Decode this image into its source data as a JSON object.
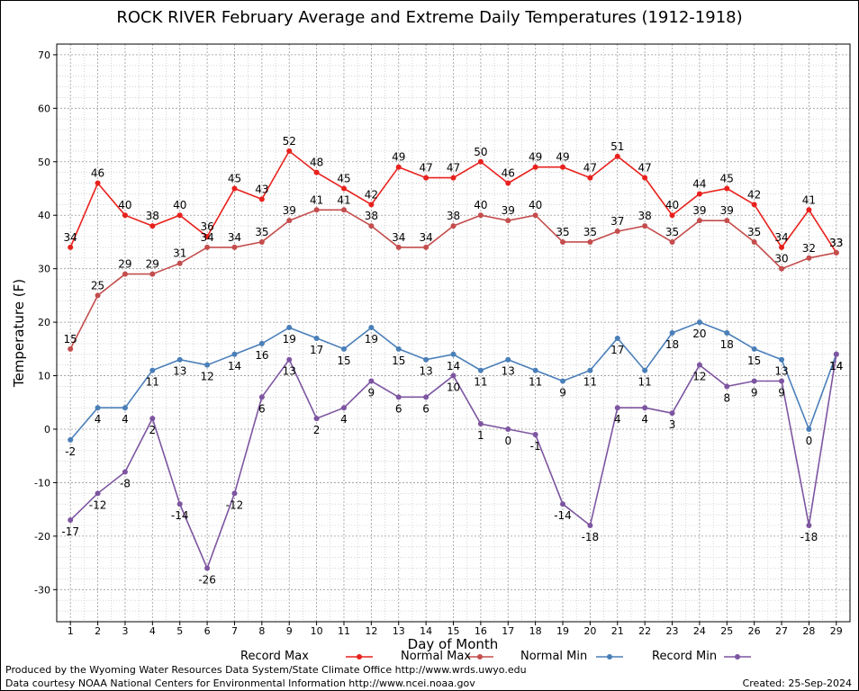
{
  "title": "ROCK RIVER February Average and Extreme Daily Temperatures (1912-1918)",
  "footer": {
    "line1": "Produced by the Wyoming Water Resources Data System/State Climate Office http://www.wrds.uwyo.edu",
    "line2": "Data courtesy NOAA National Centers for Environmental Information http://www.ncei.noaa.gov",
    "created": "Created:  25-Sep-2024"
  },
  "chart_data": {
    "type": "line",
    "xlabel": "Day of Month",
    "ylabel": "Temperature (F)",
    "xlim": [
      0.5,
      29.5
    ],
    "ylim": [
      -36,
      72
    ],
    "yticks": [
      -30,
      -20,
      -10,
      0,
      10,
      20,
      30,
      40,
      50,
      60,
      70
    ],
    "x": [
      1,
      2,
      3,
      4,
      5,
      6,
      7,
      8,
      9,
      10,
      11,
      12,
      13,
      14,
      15,
      16,
      17,
      18,
      19,
      20,
      21,
      22,
      23,
      24,
      25,
      26,
      27,
      28,
      29
    ],
    "grid": true,
    "legend_position": "bottom",
    "series": [
      {
        "name": "Record Max",
        "color": "#e8211d",
        "label_pos": "above",
        "values": [
          34,
          46,
          40,
          38,
          40,
          36,
          45,
          43,
          52,
          48,
          45,
          42,
          49,
          47,
          47,
          50,
          46,
          49,
          49,
          47,
          51,
          47,
          40,
          44,
          45,
          42,
          34,
          41,
          33
        ]
      },
      {
        "name": "Normal Max",
        "color": "#c44d4d",
        "label_pos": "above",
        "values": [
          15,
          25,
          29,
          29,
          31,
          34,
          34,
          35,
          39,
          41,
          41,
          38,
          34,
          34,
          38,
          40,
          39,
          40,
          35,
          35,
          37,
          38,
          35,
          39,
          39,
          35,
          30,
          32,
          33
        ]
      },
      {
        "name": "Normal Min",
        "color": "#4a7fb8",
        "label_pos": "below",
        "values": [
          -2,
          4,
          4,
          11,
          13,
          12,
          14,
          16,
          19,
          17,
          15,
          19,
          15,
          13,
          14,
          11,
          13,
          11,
          9,
          11,
          17,
          11,
          18,
          20,
          18,
          15,
          13,
          0,
          14
        ]
      },
      {
        "name": "Record Min",
        "color": "#7d55a0",
        "label_pos": "below",
        "values": [
          -17,
          -12,
          -8,
          2,
          -14,
          -26,
          -12,
          6,
          13,
          2,
          4,
          9,
          6,
          6,
          10,
          1,
          0,
          -1,
          -14,
          -18,
          4,
          4,
          3,
          12,
          8,
          9,
          9,
          -18,
          14
        ]
      }
    ]
  }
}
